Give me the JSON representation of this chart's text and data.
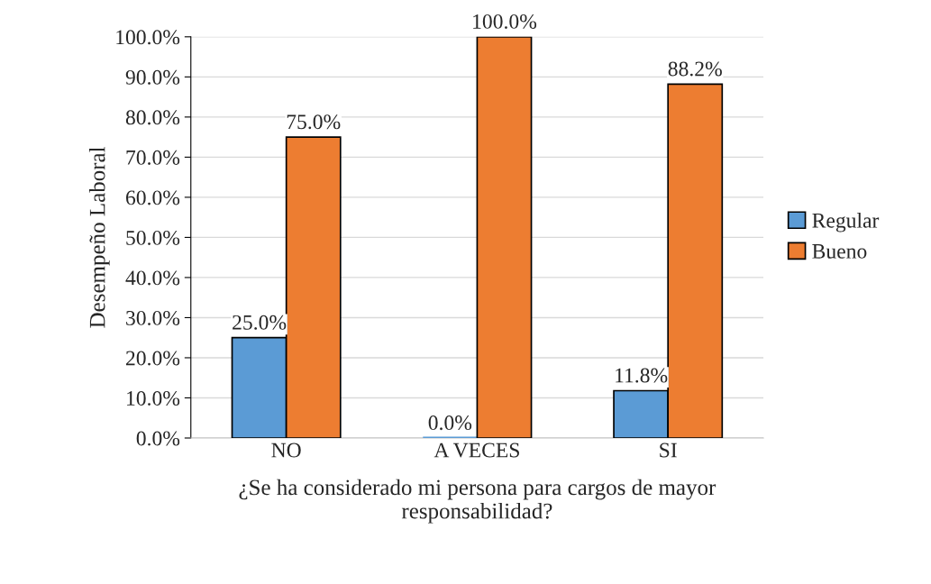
{
  "chart_data": {
    "type": "bar",
    "xlabel": "¿Se ha considerado mi persona para cargos de mayor\nresponsabilidad?",
    "ylabel": "Desempeño Laboral",
    "categories": [
      "NO",
      "A VECES",
      "SI"
    ],
    "series": [
      {
        "name": "Regular",
        "color": "#5b9bd5",
        "values": [
          25.0,
          0.0,
          11.8
        ],
        "value_labels": [
          "25.0%",
          "0.0%",
          "11.8%"
        ]
      },
      {
        "name": "Bueno",
        "color": "#ed7d31",
        "values": [
          75.0,
          100.0,
          88.2
        ],
        "value_labels": [
          "75.0%",
          "100.0%",
          "88.2%"
        ]
      }
    ],
    "ylim": [
      0,
      100
    ],
    "yticks": [
      {
        "value": 0,
        "label": "0.0%"
      },
      {
        "value": 10,
        "label": "10.0%"
      },
      {
        "value": 20,
        "label": "20.0%"
      },
      {
        "value": 30,
        "label": "30.0%"
      },
      {
        "value": 40,
        "label": "40.0%"
      },
      {
        "value": 50,
        "label": "50.0%"
      },
      {
        "value": 60,
        "label": "60.0%"
      },
      {
        "value": 70,
        "label": "70.0%"
      },
      {
        "value": 80,
        "label": "80.0%"
      },
      {
        "value": 90,
        "label": "90.0%"
      },
      {
        "value": 100,
        "label": "100.0%"
      }
    ],
    "grid": "y",
    "legend": "right"
  }
}
